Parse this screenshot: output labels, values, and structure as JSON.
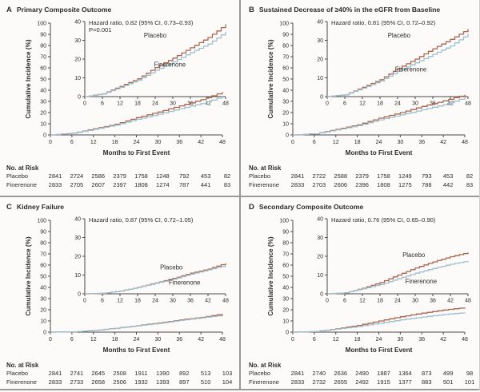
{
  "chart_data": [
    {
      "type": "line",
      "panel": "A",
      "title": "Primary Composite Outcome",
      "annotation": "Hazard ratio, 0.82 (95% CI, 0.73–0.93)",
      "p_value": "P=0.001",
      "xlabel": "Months to First Event",
      "ylabel": "Cumulative Incidence (%)",
      "x_ticks": [
        0,
        6,
        12,
        18,
        24,
        30,
        36,
        42,
        48
      ],
      "main_ylim": [
        0,
        100
      ],
      "main_yticks": [
        0,
        10,
        20,
        30,
        40,
        50,
        60,
        70,
        80,
        90,
        100
      ],
      "inset_ylim": [
        0,
        40
      ],
      "inset_yticks": [
        0,
        10,
        20,
        30,
        40
      ],
      "x_control_months": [
        0,
        6,
        12,
        18,
        24,
        30,
        36,
        42,
        48
      ],
      "series": [
        {
          "name": "Placebo",
          "color": "#ab634e",
          "values": [
            0,
            1.5,
            5.5,
            9.5,
            15.5,
            20.5,
            26,
            31.5,
            38.5
          ],
          "label_pos": {
            "x": 24,
            "y": 31.5
          }
        },
        {
          "name": "Finerenone",
          "color": "#9dbfcc",
          "values": [
            0,
            1.4,
            5,
            8.8,
            14,
            18.5,
            23.5,
            28,
            34.5
          ],
          "label_pos": {
            "x": 29,
            "y": 16
          }
        }
      ],
      "no_at_risk": {
        "label": "No. at Risk",
        "rows": [
          {
            "name": "Placebo",
            "values": [
              2841,
              2724,
              2586,
              2379,
              1758,
              1248,
              792,
              453,
              82
            ]
          },
          {
            "name": "Finerenone",
            "values": [
              2833,
              2705,
              2607,
              2397,
              1808,
              1274,
              787,
              441,
              83
            ]
          }
        ]
      }
    },
    {
      "type": "line",
      "panel": "B",
      "title": "Sustained Decrease of ≥40% in the eGFR from Baseline",
      "annotation": "Hazard ratio, 0.81 (95% CI, 0.72–0.92)",
      "xlabel": "Months to First Event",
      "ylabel": "Cumulative Incidence (%)",
      "x_ticks": [
        0,
        6,
        12,
        18,
        24,
        30,
        36,
        42,
        48
      ],
      "main_ylim": [
        0,
        100
      ],
      "main_yticks": [
        0,
        10,
        20,
        30,
        40,
        50,
        60,
        70,
        80,
        90,
        100
      ],
      "inset_ylim": [
        0,
        40
      ],
      "inset_yticks": [
        0,
        10,
        20,
        30,
        40
      ],
      "x_control_months": [
        0,
        6,
        12,
        18,
        24,
        30,
        36,
        42,
        48
      ],
      "series": [
        {
          "name": "Placebo",
          "color": "#ab634e",
          "values": [
            0,
            1,
            5,
            9,
            15,
            20,
            25.5,
            30.5,
            36
          ],
          "label_pos": {
            "x": 24.5,
            "y": 31.5
          }
        },
        {
          "name": "Finerenone",
          "color": "#9dbfcc",
          "values": [
            0,
            1,
            4.5,
            8.3,
            13.5,
            18,
            22.5,
            27,
            33.5
          ],
          "label_pos": {
            "x": 28.5,
            "y": 13.5
          }
        }
      ],
      "no_at_risk": {
        "label": "No. at Risk",
        "rows": [
          {
            "name": "Placebo",
            "values": [
              2841,
              2722,
              2588,
              2379,
              1758,
              1249,
              793,
              453,
              82
            ]
          },
          {
            "name": "Finerenone",
            "values": [
              2833,
              2703,
              2606,
              2396,
              1808,
              1275,
              788,
              442,
              83
            ]
          }
        ]
      }
    },
    {
      "type": "line",
      "panel": "C",
      "title": "Kidney Failure",
      "annotation": "Hazard ratio, 0.87 (95% CI, 0.72–1.05)",
      "xlabel": "Months to First Event",
      "ylabel": "Cumulative Incidence (%)",
      "x_ticks": [
        0,
        6,
        12,
        18,
        24,
        30,
        36,
        42,
        48
      ],
      "main_ylim": [
        0,
        100
      ],
      "main_yticks": [
        0,
        10,
        20,
        30,
        40,
        50,
        60,
        70,
        80,
        90,
        100
      ],
      "inset_ylim": [
        0,
        40
      ],
      "inset_yticks": [
        0,
        10,
        20,
        30,
        40
      ],
      "x_control_months": [
        0,
        6,
        12,
        18,
        24,
        30,
        36,
        42,
        48
      ],
      "series": [
        {
          "name": "Placebo",
          "color": "#ab634e",
          "values": [
            0,
            0.3,
            1.5,
            3.5,
            5.8,
            8.2,
            11,
            13.2,
            16.3
          ],
          "label_pos": {
            "x": 29.5,
            "y": 13
          }
        },
        {
          "name": "Finerenone",
          "color": "#9dbfcc",
          "values": [
            0,
            0.3,
            1.5,
            3.4,
            5.6,
            7.8,
            10.5,
            12.8,
            15.2
          ],
          "label_pos": {
            "x": 34,
            "y": 5
          }
        }
      ],
      "no_at_risk": {
        "label": "No. at Risk",
        "rows": [
          {
            "name": "Placebo",
            "values": [
              2841,
              2741,
              2645,
              2508,
              1911,
              1390,
              892,
              513,
              103
            ]
          },
          {
            "name": "Finerenone",
            "values": [
              2833,
              2733,
              2658,
              2506,
              1932,
              1393,
              897,
              510,
              104
            ]
          }
        ]
      }
    },
    {
      "type": "line",
      "panel": "D",
      "title": "Secondary Composite Outcome",
      "annotation": "Hazard ratio, 0.76 (95% CI, 0.65–0.90)",
      "xlabel": "Months to First Event",
      "ylabel": "Cumulative Incidence (%)",
      "x_ticks": [
        0,
        6,
        12,
        18,
        24,
        30,
        36,
        42,
        48
      ],
      "main_ylim": [
        0,
        100
      ],
      "main_yticks": [
        0,
        10,
        20,
        30,
        40,
        50,
        60,
        70,
        80,
        90,
        100
      ],
      "inset_ylim": [
        0,
        40
      ],
      "inset_yticks": [
        0,
        10,
        20,
        30,
        40
      ],
      "x_control_months": [
        0,
        6,
        12,
        18,
        24,
        30,
        36,
        42,
        48
      ],
      "series": [
        {
          "name": "Placebo",
          "color": "#ab634e",
          "values": [
            0,
            0.5,
            3,
            6,
            10,
            13.8,
            17,
            19.8,
            22
          ],
          "label_pos": {
            "x": 29.5,
            "y": 19.5
          }
        },
        {
          "name": "Finerenone",
          "color": "#9dbfcc",
          "values": [
            0,
            0.5,
            2.7,
            5,
            8,
            11,
            13.5,
            15.8,
            17.5
          ],
          "label_pos": {
            "x": 32,
            "y": 5.5
          }
        }
      ],
      "no_at_risk": {
        "label": "No. at Risk",
        "rows": [
          {
            "name": "Placebo",
            "values": [
              2841,
              2740,
              2636,
              2490,
              1887,
              1364,
              873,
              499,
              98
            ]
          },
          {
            "name": "Finerenone",
            "values": [
              2833,
              2732,
              2655,
              2492,
              1915,
              1377,
              883,
              501,
              101
            ]
          }
        ]
      }
    }
  ]
}
